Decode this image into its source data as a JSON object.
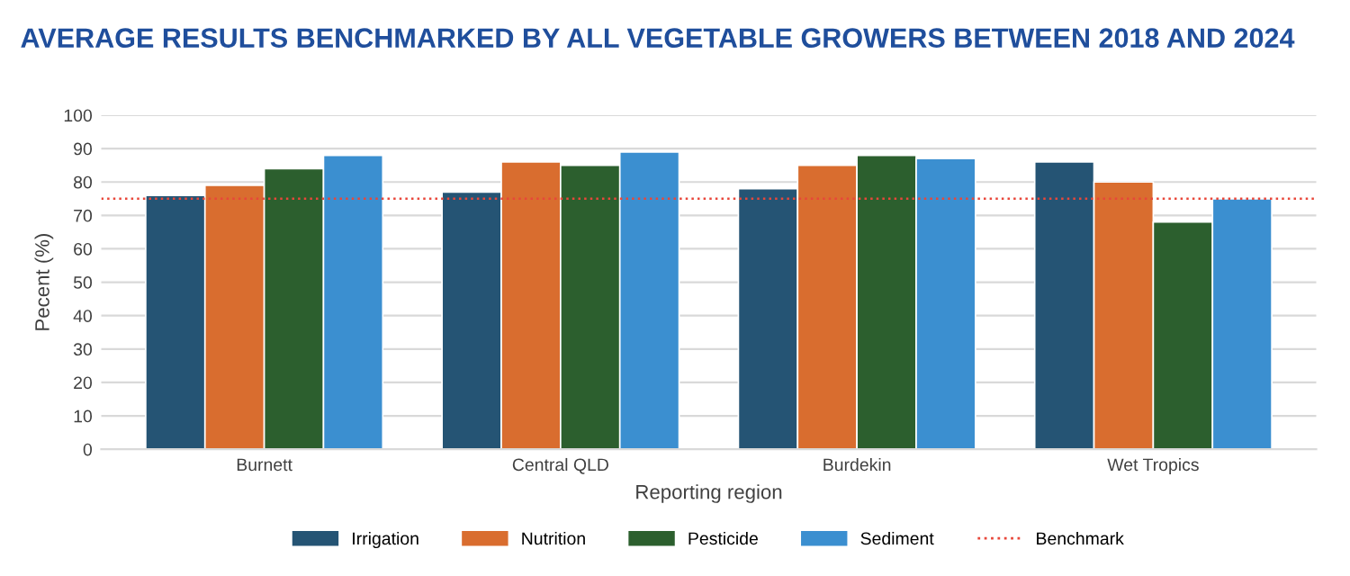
{
  "chart_data": {
    "type": "bar",
    "title": "AVERAGE RESULTS BENCHMARKED BY ALL VEGETABLE GROWERS BETWEEN 2018 AND 2024",
    "xlabel": "Reporting region",
    "ylabel": "Pecent (%)",
    "categories": [
      "Burnett",
      "Central QLD",
      "Burdekin",
      "Wet Tropics"
    ],
    "series": [
      {
        "name": "Irrigation",
        "color": "#255474",
        "values": [
          76,
          77,
          78,
          86
        ]
      },
      {
        "name": "Nutrition",
        "color": "#d96d2f",
        "values": [
          79,
          86,
          85,
          80
        ]
      },
      {
        "name": "Pesticide",
        "color": "#2c5f2e",
        "values": [
          84,
          85,
          88,
          68
        ]
      },
      {
        "name": "Sediment",
        "color": "#3b8fd0",
        "values": [
          88,
          89,
          87,
          75
        ]
      }
    ],
    "ref_lines": [
      {
        "axis": "y",
        "value": 75,
        "label": "Benchmark",
        "color": "#e8473a",
        "line_style": "dotted"
      }
    ],
    "ylim": [
      0,
      100
    ],
    "yticks": [
      0,
      10,
      20,
      30,
      40,
      50,
      60,
      70,
      80,
      90,
      100
    ],
    "grid": "y",
    "legend": "bottom"
  }
}
